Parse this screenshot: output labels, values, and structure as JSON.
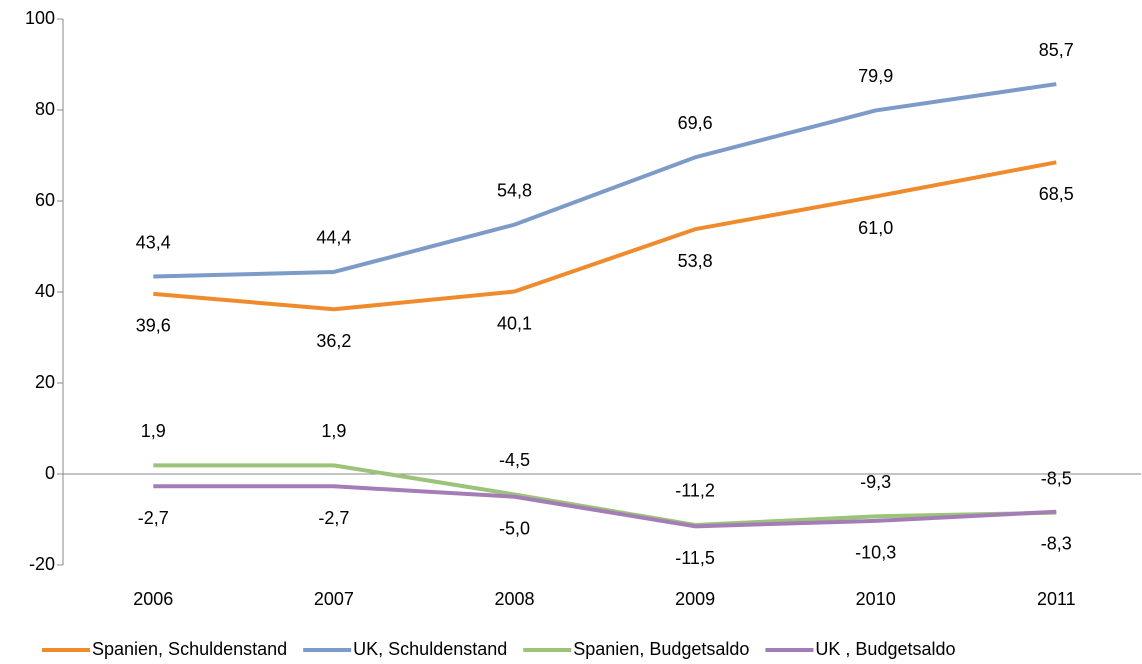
{
  "chart_data": {
    "type": "line",
    "categories": [
      "2006",
      "2007",
      "2008",
      "2009",
      "2010",
      "2011"
    ],
    "series": [
      {
        "name": "Spanien, Schuldenstand",
        "color": "#ef8b2c",
        "label_position": "below",
        "values": [
          39.6,
          36.2,
          40.1,
          53.8,
          61.0,
          68.5
        ],
        "value_labels": [
          "39,6",
          "36,2",
          "40,1",
          "53,8",
          "61,0",
          "68,5"
        ]
      },
      {
        "name": "UK, Schuldenstand",
        "color": "#7d9bc9",
        "label_position": "above",
        "values": [
          43.4,
          44.4,
          54.8,
          69.6,
          79.9,
          85.7
        ],
        "value_labels": [
          "43,4",
          "44,4",
          "54,8",
          "69,6",
          "79,9",
          "85,7"
        ]
      },
      {
        "name": "Spanien, Budgetsaldo",
        "color": "#9cc37a",
        "label_position": "above",
        "values": [
          1.9,
          1.9,
          -4.5,
          -11.2,
          -9.3,
          -8.5
        ],
        "value_labels": [
          "1,9",
          "1,9",
          "-4,5",
          "-11,2",
          "-9,3",
          "-8,5"
        ]
      },
      {
        "name": "UK , Budgetsaldo",
        "color": "#a57db6",
        "label_position": "below",
        "values": [
          -2.7,
          -2.7,
          -5.0,
          -11.5,
          -10.3,
          -8.3
        ],
        "value_labels": [
          "-2,7",
          "-2,7",
          "-5,0",
          "-11,5",
          "-10,3",
          "-8,3"
        ]
      }
    ],
    "ylim": [
      -20,
      100
    ],
    "yticks": [
      -20,
      0,
      20,
      40,
      60,
      80,
      100
    ],
    "legend": "bottom"
  }
}
